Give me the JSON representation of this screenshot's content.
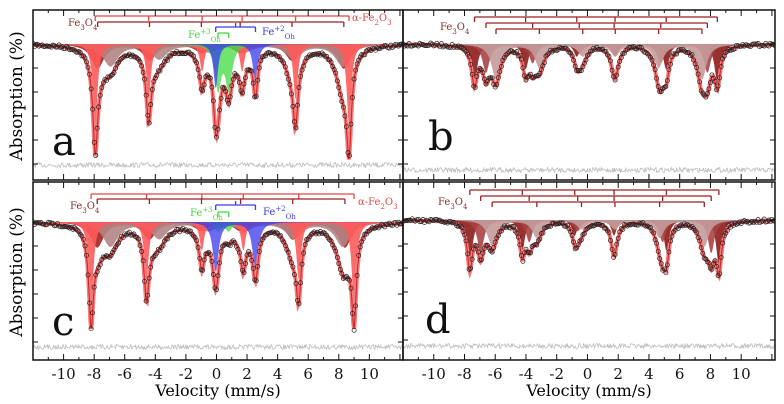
{
  "figure": {
    "xlabel": "Velocity (mm/s)",
    "ylabel": "Absorption (%)"
  },
  "chart_data": [
    {
      "panel": "a",
      "type": "scatter",
      "xlim": [
        -12,
        12.2
      ],
      "xticks": [
        -10,
        -8,
        -6,
        -4,
        -2,
        0,
        2,
        4,
        6,
        8,
        10
      ],
      "components": [
        {
          "name": "Fe3O4 (A)",
          "shape": "sextet",
          "isomer_shift": 0.28,
          "half_span": 8.05,
          "depth": 2.2,
          "width": 1.0,
          "color": "#a3231f"
        },
        {
          "name": "Fe3O4 (B)",
          "shape": "sextet",
          "isomer_shift": 0.66,
          "half_span": 7.6,
          "depth": 2.0,
          "width": 1.2,
          "color": "#b48484"
        },
        {
          "name": "α-Fe2O3",
          "shape": "sextet",
          "isomer_shift": 0.37,
          "half_span": 8.3,
          "depth": 7.5,
          "width": 0.35,
          "color": "#ff5a5a"
        },
        {
          "name": "Fe+3 Oh",
          "shape": "doublet",
          "isomer_shift": 0.45,
          "splitting": 0.7,
          "depth": 4.0,
          "width": 0.5,
          "color": "#3fdc3f"
        },
        {
          "name": "Fe+2 Oh",
          "shape": "doublet",
          "isomer_shift": 1.25,
          "splitting": 2.6,
          "depth": 4.0,
          "width": 0.35,
          "color": "#3a3aee"
        }
      ],
      "labels": [
        {
          "parts": [
            {
              "t": "Fe"
            },
            {
              "t": "3",
              "sub": true
            },
            {
              "t": "O"
            },
            {
              "t": "4",
              "sub": true
            }
          ],
          "color": "#8b2c2c"
        },
        {
          "parts": [
            {
              "t": "α-Fe"
            },
            {
              "t": "2",
              "sub": true
            },
            {
              "t": "O"
            },
            {
              "t": "3",
              "sub": true
            }
          ],
          "color": "#e04848"
        },
        {
          "parts": [
            {
              "t": "Fe"
            },
            {
              "t": "+3",
              "sup": true
            },
            {
              "t": "Oh",
              "sub": true
            }
          ],
          "color": "#3fdc3f"
        },
        {
          "parts": [
            {
              "t": "Fe"
            },
            {
              "t": "+2",
              "sup": true
            },
            {
              "t": "Oh",
              "sub": true
            }
          ],
          "color": "#3a3aee"
        }
      ],
      "letter": "a"
    },
    {
      "panel": "b",
      "type": "scatter",
      "xlim": [
        -12,
        12.2
      ],
      "xticks": [
        -10,
        -8,
        -6,
        -4,
        -2,
        0,
        2,
        4,
        6,
        8,
        10
      ],
      "components": [
        {
          "name": "Fe3O4 site 1",
          "shape": "sextet",
          "isomer_shift": 0.55,
          "half_span": 7.9,
          "depth": 3.4,
          "width": 0.45,
          "color": "#8e1b1b"
        },
        {
          "name": "Fe3O4 site 2",
          "shape": "sextet",
          "isomer_shift": 0.6,
          "half_span": 7.2,
          "depth": 2.6,
          "width": 0.55,
          "color": "#a84444"
        },
        {
          "name": "Fe3O4 site 3",
          "shape": "sextet",
          "isomer_shift": 0.75,
          "half_span": 6.7,
          "depth": 3.2,
          "width": 0.7,
          "color": "#c49b9b"
        }
      ],
      "labels": [
        {
          "parts": [
            {
              "t": "Fe"
            },
            {
              "t": "3",
              "sub": true
            },
            {
              "t": "O"
            },
            {
              "t": "4",
              "sub": true
            }
          ],
          "color": "#8b2c2c"
        }
      ],
      "letter": "b"
    },
    {
      "panel": "c",
      "type": "scatter",
      "xlim": [
        -12,
        12.2
      ],
      "xticks": [
        -10,
        -8,
        -6,
        -4,
        -2,
        0,
        2,
        4,
        6,
        8,
        10
      ],
      "components": [
        {
          "name": "Fe3O4 (A)",
          "shape": "sextet",
          "isomer_shift": 0.3,
          "half_span": 8.1,
          "depth": 2.3,
          "width": 1.0,
          "color": "#a3231f"
        },
        {
          "name": "Fe3O4 (B)",
          "shape": "sextet",
          "isomer_shift": 0.66,
          "half_span": 7.6,
          "depth": 2.2,
          "width": 1.2,
          "color": "#b48484"
        },
        {
          "name": "α-Fe2O3",
          "shape": "sextet",
          "isomer_shift": 0.4,
          "half_span": 8.6,
          "depth": 7.8,
          "width": 0.35,
          "color": "#ff5a5a"
        },
        {
          "name": "Fe+3 Oh",
          "shape": "doublet",
          "isomer_shift": 0.45,
          "splitting": 0.7,
          "depth": 0.8,
          "width": 0.5,
          "color": "#3fdc3f"
        },
        {
          "name": "Fe+2 Oh",
          "shape": "doublet",
          "isomer_shift": 1.25,
          "splitting": 2.6,
          "depth": 4.5,
          "width": 0.45,
          "color": "#3a3aee"
        }
      ],
      "labels": [
        {
          "parts": [
            {
              "t": "Fe"
            },
            {
              "t": "3",
              "sub": true
            },
            {
              "t": "O"
            },
            {
              "t": "4",
              "sub": true
            }
          ],
          "color": "#8b2c2c"
        },
        {
          "parts": [
            {
              "t": "α-Fe"
            },
            {
              "t": "2",
              "sub": true
            },
            {
              "t": "O"
            },
            {
              "t": "3",
              "sub": true
            }
          ],
          "color": "#e04848"
        },
        {
          "parts": [
            {
              "t": "Fe"
            },
            {
              "t": "+3",
              "sup": true
            },
            {
              "t": "Oh",
              "sub": true
            }
          ],
          "color": "#3fdc3f"
        },
        {
          "parts": [
            {
              "t": "Fe"
            },
            {
              "t": "+2",
              "sup": true
            },
            {
              "t": "Oh",
              "sub": true
            }
          ],
          "color": "#3a3aee"
        }
      ],
      "letter": "c"
    },
    {
      "panel": "d",
      "type": "scatter",
      "xlim": [
        -12,
        12.2
      ],
      "xticks": [
        -10,
        -8,
        -6,
        -4,
        -2,
        0,
        2,
        4,
        6,
        8,
        10
      ],
      "components": [
        {
          "name": "Fe3O4 site 1",
          "shape": "sextet",
          "isomer_shift": 0.45,
          "half_span": 8.1,
          "depth": 4.2,
          "width": 0.4,
          "color": "#8e1b1b"
        },
        {
          "name": "Fe3O4 site 2",
          "shape": "sextet",
          "isomer_shift": 0.55,
          "half_span": 7.5,
          "depth": 3.0,
          "width": 0.5,
          "color": "#a84444"
        },
        {
          "name": "Fe3O4 site 3",
          "shape": "sextet",
          "isomer_shift": 0.7,
          "half_span": 6.9,
          "depth": 2.4,
          "width": 0.7,
          "color": "#c49b9b"
        }
      ],
      "labels": [
        {
          "parts": [
            {
              "t": "Fe"
            },
            {
              "t": "3",
              "sub": true
            },
            {
              "t": "O"
            },
            {
              "t": "4",
              "sub": true
            }
          ],
          "color": "#8b2c2c"
        }
      ],
      "letter": "d"
    }
  ]
}
